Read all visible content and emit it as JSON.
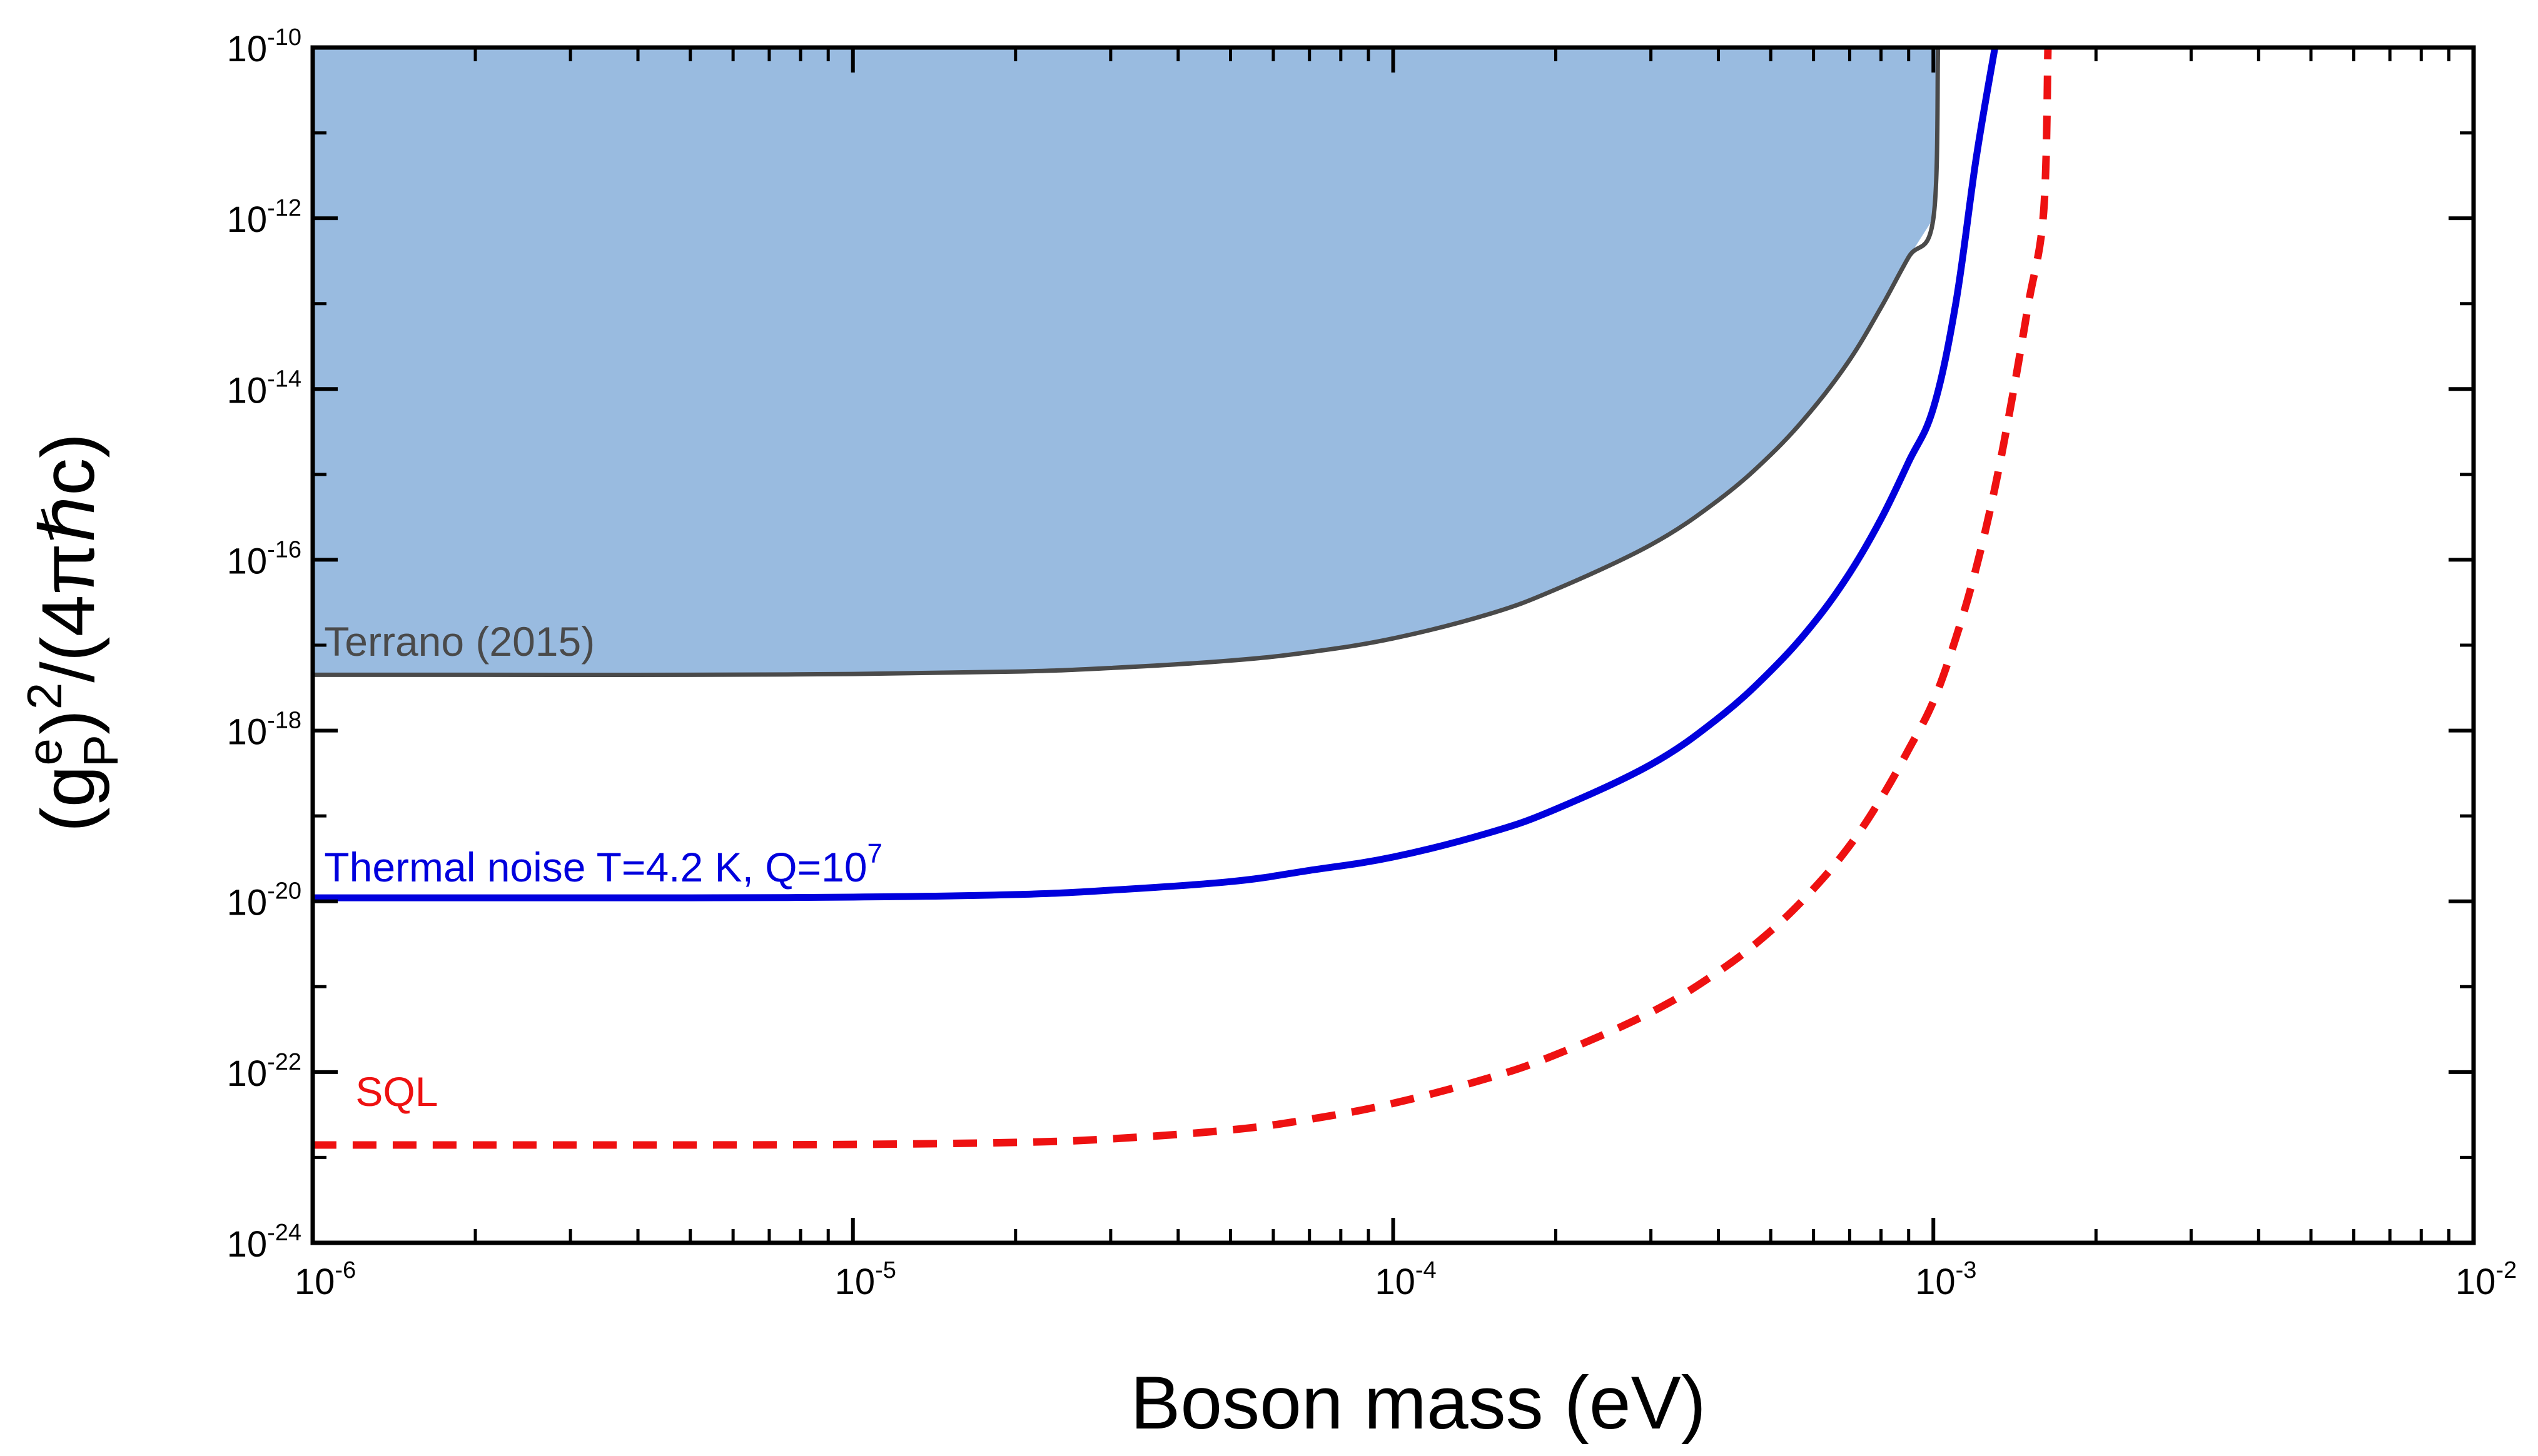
{
  "chart_data": {
    "type": "line",
    "xscale": "log",
    "yscale": "log",
    "xlim": [
      1e-06,
      0.01
    ],
    "ylim": [
      1e-24,
      1e-10
    ],
    "xticks": [
      {
        "value": 1e-06,
        "base": "10",
        "exp": "-6"
      },
      {
        "value": 1e-05,
        "base": "10",
        "exp": "-5"
      },
      {
        "value": 0.0001,
        "base": "10",
        "exp": "-4"
      },
      {
        "value": 0.001,
        "base": "10",
        "exp": "-3"
      },
      {
        "value": 0.01,
        "base": "10",
        "exp": "-2"
      }
    ],
    "yticks": [
      {
        "value": 1e-24,
        "base": "10",
        "exp": "-24"
      },
      {
        "value": 1e-22,
        "base": "10",
        "exp": "-22"
      },
      {
        "value": 1e-20,
        "base": "10",
        "exp": "-20"
      },
      {
        "value": 1e-18,
        "base": "10",
        "exp": "-18"
      },
      {
        "value": 1e-16,
        "base": "10",
        "exp": "-16"
      },
      {
        "value": 1e-14,
        "base": "10",
        "exp": "-14"
      },
      {
        "value": 1e-12,
        "base": "10",
        "exp": "-12"
      },
      {
        "value": 1e-10,
        "base": "10",
        "exp": "-10"
      }
    ],
    "xlabel": "Boson mass (eV)",
    "ylabel": {
      "open": "(g",
      "sup": "e",
      "sub": "P",
      "mid": ")",
      "sup2": "2",
      "tail": "/(4πℏc)"
    },
    "grid": false,
    "series": [
      {
        "name": "Terrano (2015)",
        "style": "solid",
        "color": "#4a4a4a",
        "fill": "#99bbe0",
        "points": [
          [
            1e-06,
            4.5e-18
          ],
          [
            2e-06,
            4.5e-18
          ],
          [
            5e-06,
            4.5e-18
          ],
          [
            1e-05,
            4.6e-18
          ],
          [
            2e-05,
            4.9e-18
          ],
          [
            3e-05,
            5.4e-18
          ],
          [
            5e-05,
            6.6e-18
          ],
          [
            7e-05,
            8.3e-18
          ],
          [
            0.0001,
            1.2e-17
          ],
          [
            0.00015,
            2.3e-17
          ],
          [
            0.0002,
            4.5e-17
          ],
          [
            0.0003,
            1.5e-16
          ],
          [
            0.0004,
            5e-16
          ],
          [
            0.0005,
            1.7e-15
          ],
          [
            0.0006,
            6e-15
          ],
          [
            0.0007,
            2.2e-14
          ],
          [
            0.0008,
            9e-14
          ],
          [
            0.0009,
            3.5e-13
          ],
          [
            0.001,
            1e-12
          ],
          [
            0.00102,
            1e-10
          ]
        ]
      },
      {
        "name": "Thermal noise T=4.2 K, Q=10",
        "name_sup": "7",
        "style": "solid",
        "color": "#0000dd",
        "points": [
          [
            1e-06,
            1.1e-20
          ],
          [
            2e-06,
            1.1e-20
          ],
          [
            5e-06,
            1.1e-20
          ],
          [
            1e-05,
            1.12e-20
          ],
          [
            2e-05,
            1.2e-20
          ],
          [
            3e-05,
            1.35e-20
          ],
          [
            5e-05,
            1.7e-20
          ],
          [
            7e-05,
            2.3e-20
          ],
          [
            0.0001,
            3.3e-20
          ],
          [
            0.00015,
            6.3e-20
          ],
          [
            0.0002,
            1.2e-19
          ],
          [
            0.0003,
            4e-19
          ],
          [
            0.0004,
            1.4e-18
          ],
          [
            0.0005,
            5e-18
          ],
          [
            0.0006,
            1.8e-17
          ],
          [
            0.0007,
            7e-17
          ],
          [
            0.0008,
            3e-16
          ],
          [
            0.0009,
            1.4e-15
          ],
          [
            0.001,
            6e-15
          ],
          [
            0.0011,
            1e-13
          ],
          [
            0.0012,
            5e-12
          ],
          [
            0.0013,
            1e-10
          ]
        ]
      },
      {
        "name": "SQL",
        "style": "dashed",
        "color": "#ee1111",
        "points": [
          [
            1e-06,
            1.4e-23
          ],
          [
            2e-06,
            1.4e-23
          ],
          [
            5e-06,
            1.4e-23
          ],
          [
            1e-05,
            1.42e-23
          ],
          [
            2e-05,
            1.5e-23
          ],
          [
            3e-05,
            1.65e-23
          ],
          [
            5e-05,
            2.1e-23
          ],
          [
            7e-05,
            2.8e-23
          ],
          [
            0.0001,
            4.3e-23
          ],
          [
            0.00015,
            8.5e-23
          ],
          [
            0.0002,
            1.6e-22
          ],
          [
            0.0003,
            5e-22
          ],
          [
            0.0004,
            1.5e-21
          ],
          [
            0.0005,
            4.5e-21
          ],
          [
            0.0006,
            1.4e-20
          ],
          [
            0.0007,
            4.5e-20
          ],
          [
            0.0008,
            1.6e-19
          ],
          [
            0.0009,
            6e-19
          ],
          [
            0.001,
            2.2e-18
          ],
          [
            0.0011,
            1.2e-17
          ],
          [
            0.0012,
            8e-17
          ],
          [
            0.0013,
            7e-16
          ],
          [
            0.0014,
            8e-15
          ],
          [
            0.0015,
            1e-13
          ],
          [
            0.0016,
            1.2e-12
          ],
          [
            0.00163,
            1e-10
          ]
        ]
      }
    ],
    "annotations": [
      {
        "text": "Terrano (2015)",
        "series": 0,
        "x": 1.05e-06,
        "y": 7.5e-18
      },
      {
        "text": "Thermal noise T=4.2 K, Q=10",
        "sup": "7",
        "series": 1,
        "x": 1.05e-06,
        "y": 1.7e-20
      },
      {
        "text": "SQL",
        "series": 2,
        "x": 1.2e-06,
        "y": 4e-23
      }
    ]
  }
}
